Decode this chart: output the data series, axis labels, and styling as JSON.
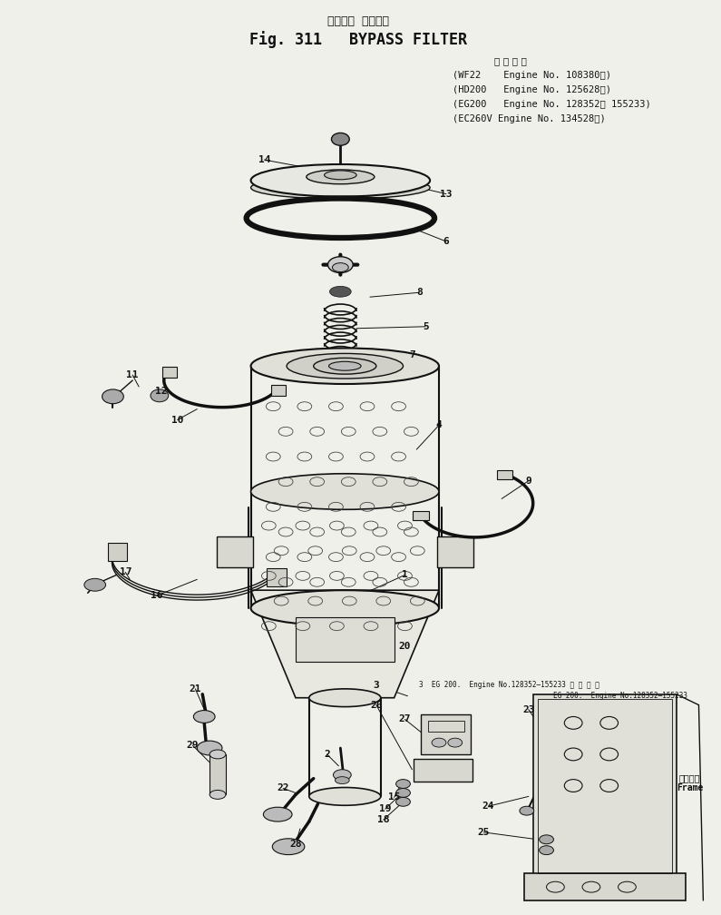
{
  "title_jp": "バイパス  フィルタ",
  "title_en": "Fig. 311   BYPASS FILTER",
  "subtitle_jp": "適 用 号 機",
  "engine_lines": [
    "(WF22    Engine No. 108380～)",
    "(HD200   Engine No. 125628～)",
    "(EG200   Engine No. 128352～ 155233)",
    "(EC260V Engine No. 134528～)"
  ],
  "note1": "3  EG 200.  Engine No.128352―155233 適 用 号 機",
  "note2": "EG 200.  Engine No.128352―155233",
  "note3_top": "フレーム",
  "note3_bot": "Frame",
  "bg_color": "#f0f0eb",
  "line_color": "#111111"
}
